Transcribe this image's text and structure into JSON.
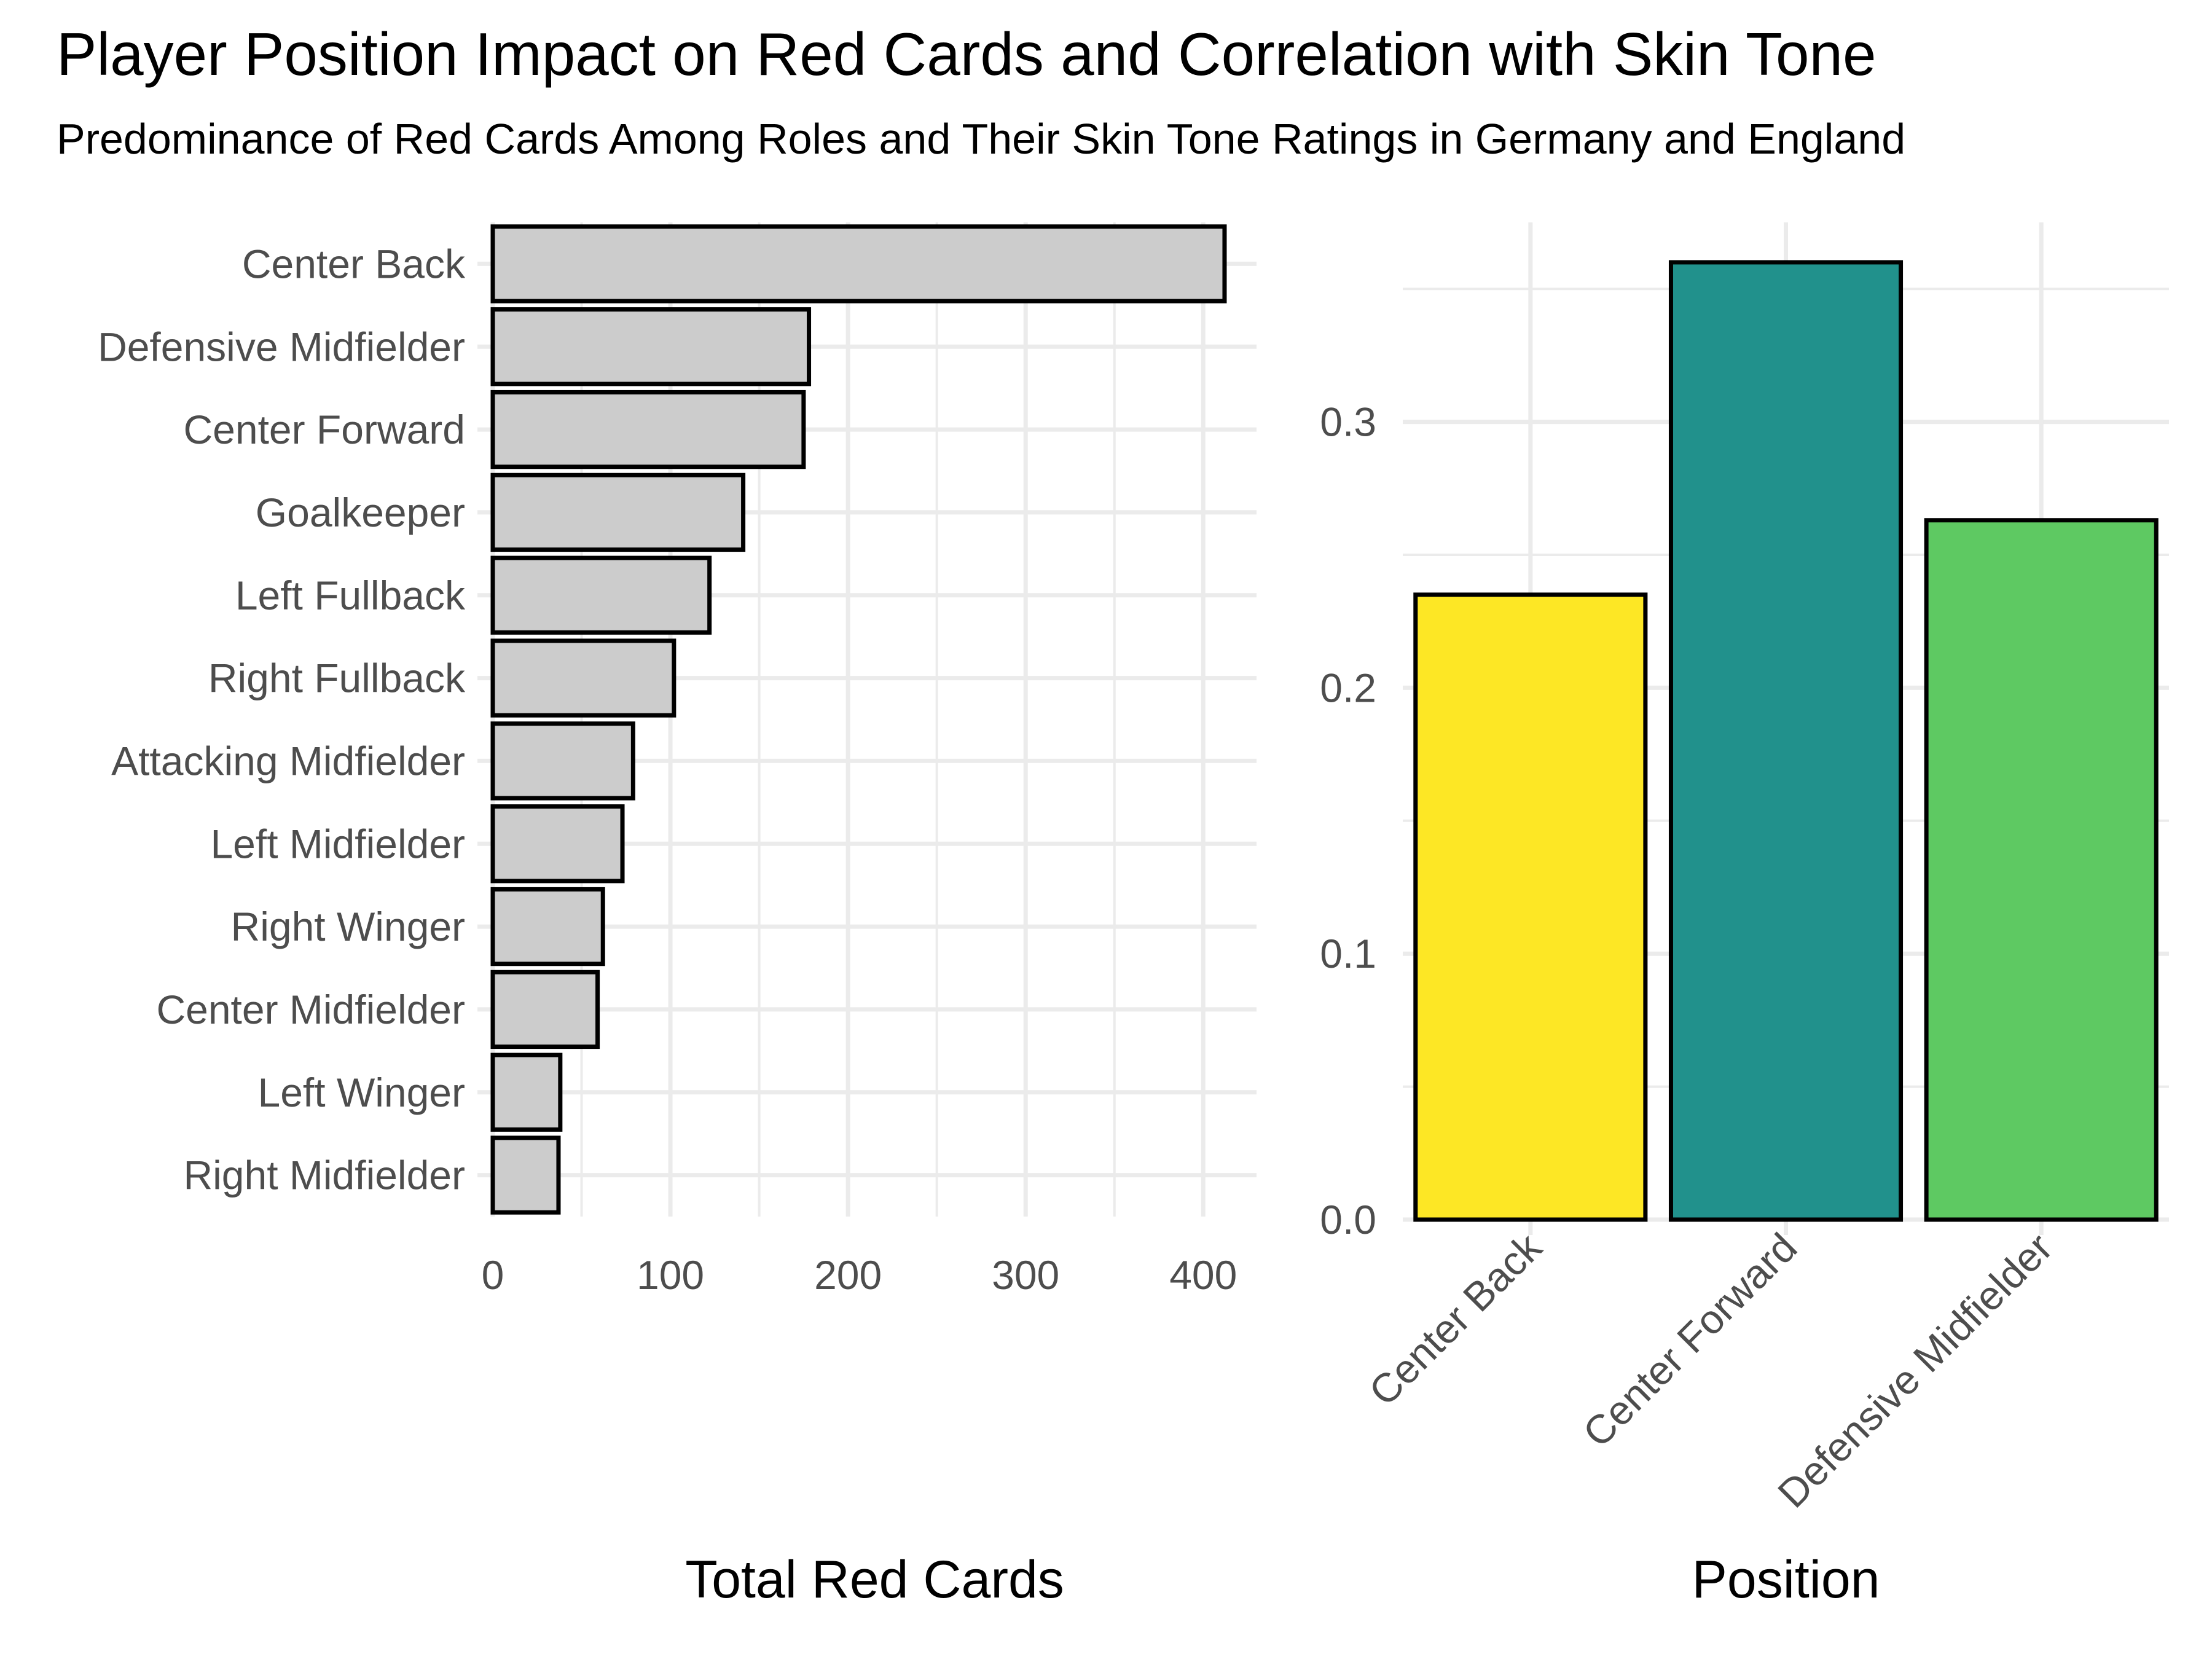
{
  "title": "Player Position Impact on Red Cards and Correlation with Skin Tone",
  "subtitle": "Predominance of Red Cards Among Roles and Their Skin Tone Ratings in Germany and England",
  "chart_data": [
    {
      "type": "bar",
      "orientation": "horizontal",
      "categories": [
        "Center Back",
        "Defensive Midfielder",
        "Center Forward",
        "Goalkeeper",
        "Left Fullback",
        "Right Fullback",
        "Attacking Midfielder",
        "Left Midfielder",
        "Right Winger",
        "Center Midfielder",
        "Left Winger",
        "Right Midfielder"
      ],
      "values": [
        412,
        178,
        175,
        141,
        122,
        102,
        79,
        73,
        62,
        59,
        38,
        37
      ],
      "xlabel": "Total Red Cards",
      "ylabel": "",
      "xlim": [
        0,
        430
      ],
      "x_ticks": [
        "0",
        "100",
        "200",
        "300",
        "400"
      ],
      "bar_fill": "#cccccc",
      "bar_outline": "#000000",
      "grid": true
    },
    {
      "type": "bar",
      "orientation": "vertical",
      "categories": [
        "Center Back",
        "Center Forward",
        "Defensive Midfielder"
      ],
      "values": [
        0.235,
        0.36,
        0.263
      ],
      "xlabel": "Position",
      "ylabel": "",
      "ylim": [
        0,
        0.375
      ],
      "y_ticks": [
        "0.0",
        "0.1",
        "0.2",
        "0.3"
      ],
      "colors": [
        "#fde725",
        "#21918c",
        "#5ec962"
      ],
      "bar_outline": "#000000",
      "grid": true
    }
  ]
}
